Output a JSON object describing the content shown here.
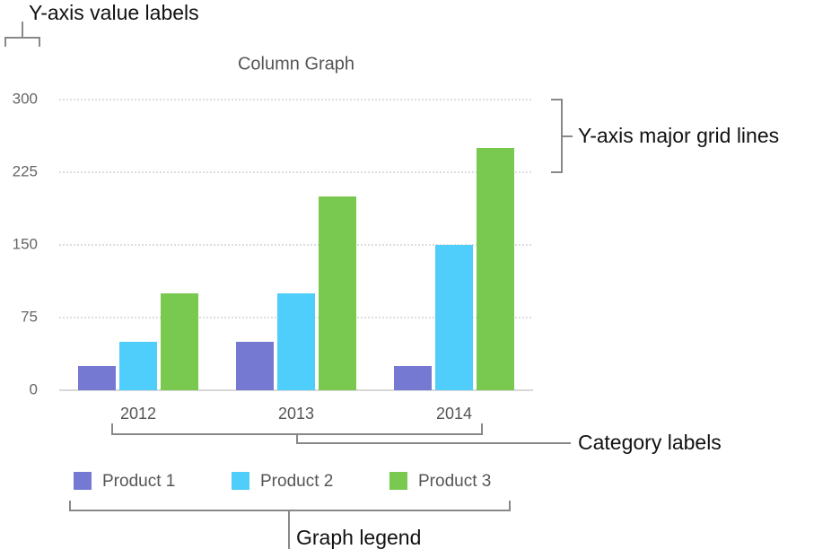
{
  "chart_data": {
    "type": "bar",
    "title": "Column Graph",
    "categories": [
      "2012",
      "2013",
      "2014"
    ],
    "series": [
      {
        "name": "Product 1",
        "color": "#7579d1",
        "values": [
          25,
          50,
          25
        ]
      },
      {
        "name": "Product 2",
        "color": "#4fcdfb",
        "values": [
          50,
          100,
          150
        ]
      },
      {
        "name": "Product 3",
        "color": "#79c950",
        "values": [
          100,
          200,
          250
        ]
      }
    ],
    "ylim": [
      0,
      300
    ],
    "yticks": [
      0,
      75,
      150,
      225,
      300
    ],
    "grid": true,
    "legend": "bottom",
    "annotations": [
      "Y-axis value labels",
      "Y-axis major grid lines",
      "Category labels",
      "Graph legend"
    ]
  }
}
